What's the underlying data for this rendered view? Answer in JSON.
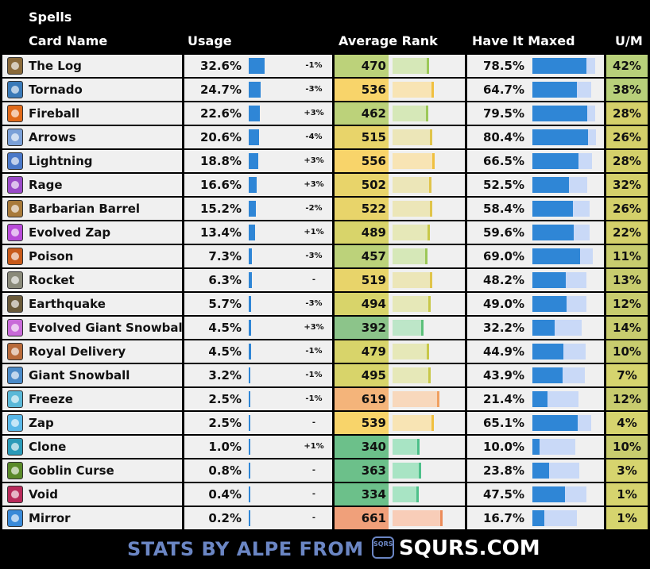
{
  "section_title": "Spells",
  "headers": {
    "card_name": "Card Name",
    "usage": "Usage",
    "avg_rank": "Average Rank",
    "have_it_maxed": "Have It Maxed",
    "um": "U/M"
  },
  "rows": [
    {
      "name": "The Log",
      "icon": "the-log-icon",
      "icon_color": "#8a6a3a",
      "usage": "32.6%",
      "usage_value": 32.6,
      "change": "-1%",
      "rank": "470",
      "rank_value": 470,
      "maxed": "78.5%",
      "maxed_value": 78.5,
      "um": "42%"
    },
    {
      "name": "Tornado",
      "icon": "tornado-icon",
      "icon_color": "#3a7ab8",
      "usage": "24.7%",
      "usage_value": 24.7,
      "change": "-3%",
      "rank": "536",
      "rank_value": 536,
      "maxed": "64.7%",
      "maxed_value": 64.7,
      "um": "38%"
    },
    {
      "name": "Fireball",
      "icon": "fireball-icon",
      "icon_color": "#e06a1a",
      "usage": "22.6%",
      "usage_value": 22.6,
      "change": "+3%",
      "rank": "462",
      "rank_value": 462,
      "maxed": "79.5%",
      "maxed_value": 79.5,
      "um": "28%"
    },
    {
      "name": "Arrows",
      "icon": "arrows-icon",
      "icon_color": "#7aa0d8",
      "usage": "20.6%",
      "usage_value": 20.6,
      "change": "-4%",
      "rank": "515",
      "rank_value": 515,
      "maxed": "80.4%",
      "maxed_value": 80.4,
      "um": "26%"
    },
    {
      "name": "Lightning",
      "icon": "lightning-icon",
      "icon_color": "#4a78c8",
      "usage": "18.8%",
      "usage_value": 18.8,
      "change": "+3%",
      "rank": "556",
      "rank_value": 556,
      "maxed": "66.5%",
      "maxed_value": 66.5,
      "um": "28%"
    },
    {
      "name": "Rage",
      "icon": "rage-icon",
      "icon_color": "#9a4ac8",
      "usage": "16.6%",
      "usage_value": 16.6,
      "change": "+3%",
      "rank": "502",
      "rank_value": 502,
      "maxed": "52.5%",
      "maxed_value": 52.5,
      "um": "32%"
    },
    {
      "name": "Barbarian Barrel",
      "icon": "barbarian-barrel-icon",
      "icon_color": "#a87a3a",
      "usage": "15.2%",
      "usage_value": 15.2,
      "change": "-2%",
      "rank": "522",
      "rank_value": 522,
      "maxed": "58.4%",
      "maxed_value": 58.4,
      "um": "26%"
    },
    {
      "name": "Evolved Zap",
      "icon": "evolved-zap-icon",
      "icon_color": "#b84ad8",
      "usage": "13.4%",
      "usage_value": 13.4,
      "change": "+1%",
      "rank": "489",
      "rank_value": 489,
      "maxed": "59.6%",
      "maxed_value": 59.6,
      "um": "22%"
    },
    {
      "name": "Poison",
      "icon": "poison-icon",
      "icon_color": "#c85a1a",
      "usage": "7.3%",
      "usage_value": 7.3,
      "change": "-3%",
      "rank": "457",
      "rank_value": 457,
      "maxed": "69.0%",
      "maxed_value": 69.0,
      "um": "11%"
    },
    {
      "name": "Rocket",
      "icon": "rocket-icon",
      "icon_color": "#8a8a7a",
      "usage": "6.3%",
      "usage_value": 6.3,
      "change": "-",
      "rank": "519",
      "rank_value": 519,
      "maxed": "48.2%",
      "maxed_value": 48.2,
      "um": "13%"
    },
    {
      "name": "Earthquake",
      "icon": "earthquake-icon",
      "icon_color": "#6a5a3a",
      "usage": "5.7%",
      "usage_value": 5.7,
      "change": "-3%",
      "rank": "494",
      "rank_value": 494,
      "maxed": "49.0%",
      "maxed_value": 49.0,
      "um": "12%"
    },
    {
      "name": "Evolved Giant Snowball",
      "icon": "evolved-giant-snowball-icon",
      "icon_color": "#c86ad8",
      "usage": "4.5%",
      "usage_value": 4.5,
      "change": "+3%",
      "rank": "392",
      "rank_value": 392,
      "maxed": "32.2%",
      "maxed_value": 32.2,
      "um": "14%"
    },
    {
      "name": "Royal Delivery",
      "icon": "royal-delivery-icon",
      "icon_color": "#b86a3a",
      "usage": "4.5%",
      "usage_value": 4.5,
      "change": "-1%",
      "rank": "479",
      "rank_value": 479,
      "maxed": "44.9%",
      "maxed_value": 44.9,
      "um": "10%"
    },
    {
      "name": "Giant Snowball",
      "icon": "giant-snowball-icon",
      "icon_color": "#4a8ac8",
      "usage": "3.2%",
      "usage_value": 3.2,
      "change": "-1%",
      "rank": "495",
      "rank_value": 495,
      "maxed": "43.9%",
      "maxed_value": 43.9,
      "um": "7%"
    },
    {
      "name": "Freeze",
      "icon": "freeze-icon",
      "icon_color": "#5ab8d8",
      "usage": "2.5%",
      "usage_value": 2.5,
      "change": "-1%",
      "rank": "619",
      "rank_value": 619,
      "maxed": "21.4%",
      "maxed_value": 21.4,
      "um": "12%"
    },
    {
      "name": "Zap",
      "icon": "zap-icon",
      "icon_color": "#5ab8e8",
      "usage": "2.5%",
      "usage_value": 2.5,
      "change": "-",
      "rank": "539",
      "rank_value": 539,
      "maxed": "65.1%",
      "maxed_value": 65.1,
      "um": "4%"
    },
    {
      "name": "Clone",
      "icon": "clone-icon",
      "icon_color": "#2a9ab8",
      "usage": "1.0%",
      "usage_value": 1.0,
      "change": "+1%",
      "rank": "340",
      "rank_value": 340,
      "maxed": "10.0%",
      "maxed_value": 10.0,
      "um": "10%"
    },
    {
      "name": "Goblin Curse",
      "icon": "goblin-curse-icon",
      "icon_color": "#5a8a2a",
      "usage": "0.8%",
      "usage_value": 0.8,
      "change": "-",
      "rank": "363",
      "rank_value": 363,
      "maxed": "23.8%",
      "maxed_value": 23.8,
      "um": "3%"
    },
    {
      "name": "Void",
      "icon": "void-icon",
      "icon_color": "#b82a5a",
      "usage": "0.4%",
      "usage_value": 0.4,
      "change": "-",
      "rank": "334",
      "rank_value": 334,
      "maxed": "47.5%",
      "maxed_value": 47.5,
      "um": "1%"
    },
    {
      "name": "Mirror",
      "icon": "mirror-icon",
      "icon_color": "#3a8ad8",
      "usage": "0.2%",
      "usage_value": 0.2,
      "change": "-",
      "rank": "661",
      "rank_value": 661,
      "maxed": "16.7%",
      "maxed_value": 16.7,
      "um": "1%"
    }
  ],
  "footer": {
    "text": "STATS BY ALPE FROM",
    "logo_icon": "squrs-logo-icon",
    "logo_letters": "SQRS",
    "site": "SQURS.COM"
  },
  "colors": {
    "background": "#000000",
    "usage_bar": "#2f86d6",
    "maxed_fill": "#2f86d6",
    "maxed_track": "#c9d9f7",
    "footer_text": "#6b86c4",
    "um_cell": "#c8cf72"
  }
}
